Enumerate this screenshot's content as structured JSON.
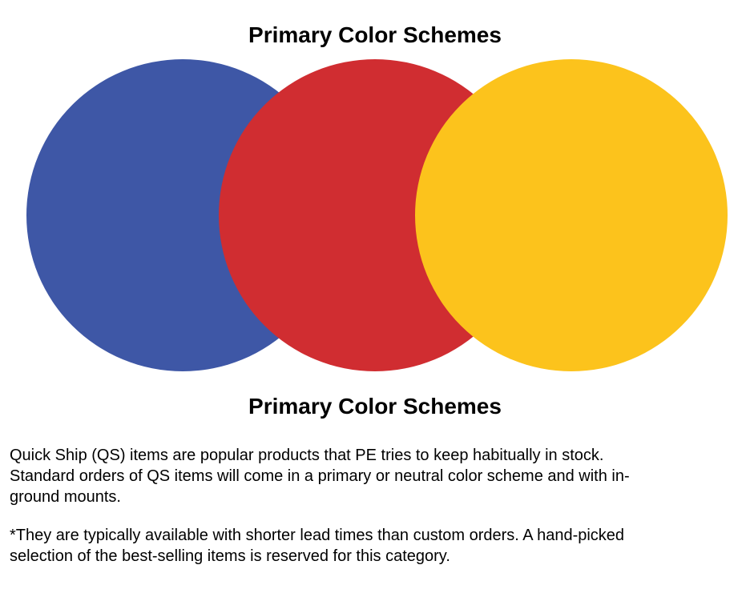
{
  "page": {
    "title": "Primary Color Schemes",
    "caption": "Primary Color Schemes"
  },
  "diagram": {
    "description": "three-overlapping-primary-color-circles",
    "circles": [
      {
        "name": "blue",
        "color": "#3E57A6"
      },
      {
        "name": "red",
        "color": "#D02D31"
      },
      {
        "name": "yellow",
        "color": "#FCC31C"
      }
    ]
  },
  "body": {
    "paragraph1": "Quick Ship (QS) items are popular products that PE tries to keep habitually in stock.\nStandard orders of QS items will come in a primary or neutral color scheme and with in-\nground mounts.",
    "paragraph2": "*They are typically available with shorter lead times than custom orders. A hand-picked\nselection of the best-selling items is reserved for this category."
  }
}
